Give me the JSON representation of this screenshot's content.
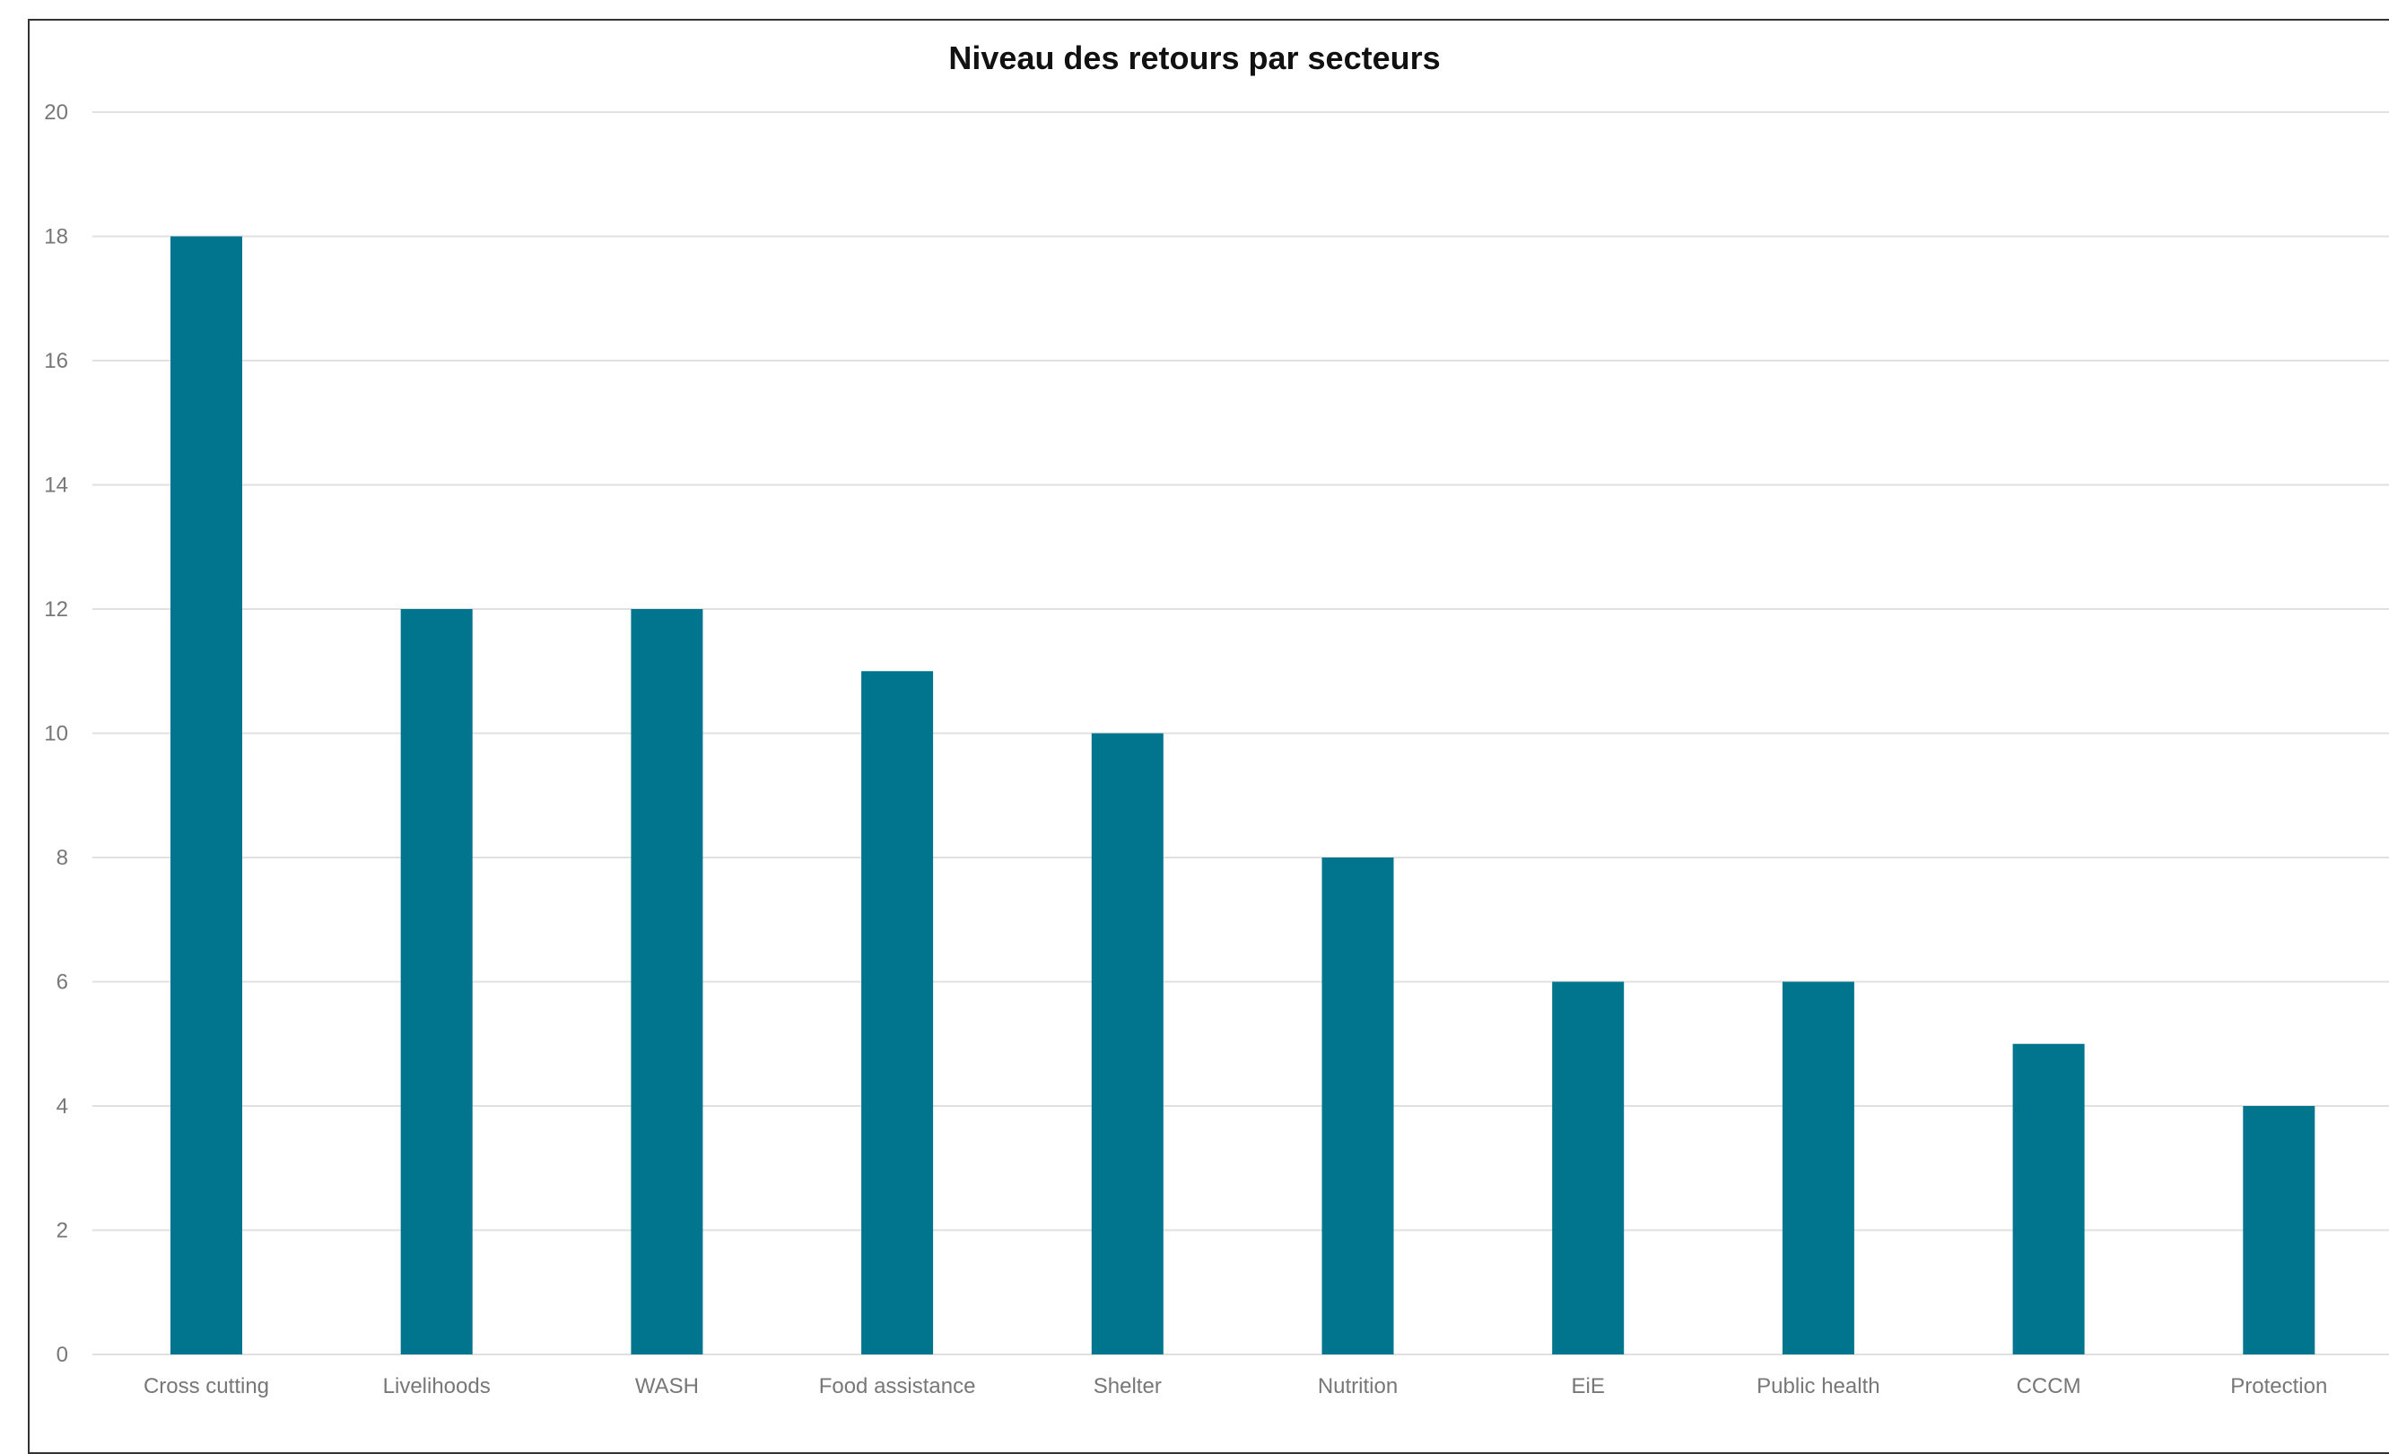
{
  "chart_data": {
    "type": "bar",
    "title": "Niveau des retours par secteurs",
    "categories": [
      "Cross cutting",
      "Livelihoods",
      "WASH",
      "Food assistance",
      "Shelter",
      "Nutrition",
      "EiE",
      "Public health",
      "CCCM",
      "Protection"
    ],
    "values": [
      18,
      12,
      12,
      11,
      10,
      8,
      6,
      6,
      5,
      4
    ],
    "xlabel": "",
    "ylabel": "",
    "ylim": [
      0,
      20
    ],
    "yticks": [
      "0",
      "2",
      "4",
      "6",
      "8",
      "10",
      "12",
      "14",
      "16",
      "18",
      "20"
    ],
    "grid": true,
    "legend": "none",
    "colors": {
      "bar": "#00758d",
      "grid": "#e0e0e0",
      "tick": "#777777"
    }
  }
}
